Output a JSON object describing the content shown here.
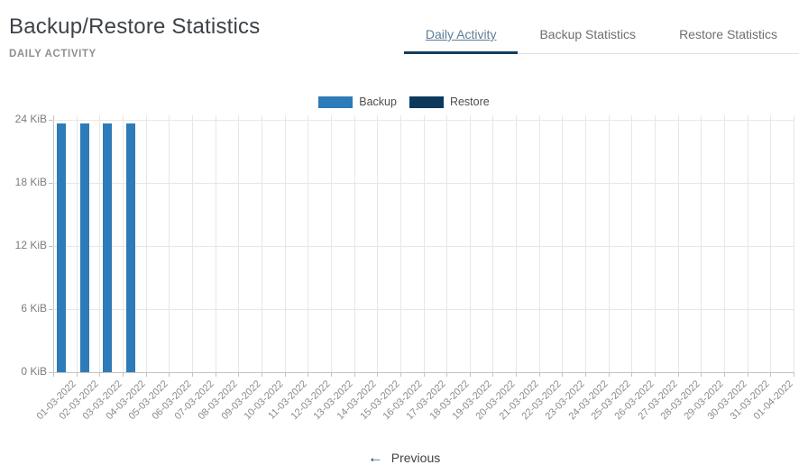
{
  "page": {
    "title": "Backup/Restore Statistics",
    "subtitle": "DAILY ACTIVITY"
  },
  "tabs": [
    {
      "label": "Daily Activity",
      "active": true
    },
    {
      "label": "Backup Statistics",
      "active": false
    },
    {
      "label": "Restore Statistics",
      "active": false
    }
  ],
  "pagination": {
    "previous_icon": "←",
    "previous_label": "Previous"
  },
  "colors": {
    "accent_navy": "#123d5f",
    "active_tab_text": "#5e7d96",
    "backup_blue": "#2d7bb8",
    "restore_navy": "#0d3a5c",
    "gridline": "#e7e7e7",
    "axis": "#c4c4c4"
  },
  "chart_data": {
    "type": "bar",
    "title": "Daily Activity",
    "categories": [
      "01-03-2022",
      "02-03-2022",
      "03-03-2022",
      "04-03-2022",
      "05-03-2022",
      "06-03-2022",
      "07-03-2022",
      "08-03-2022",
      "09-03-2022",
      "10-03-2022",
      "11-03-2022",
      "12-03-2022",
      "13-03-2022",
      "14-03-2022",
      "15-03-2022",
      "16-03-2022",
      "17-03-2022",
      "18-03-2022",
      "19-03-2022",
      "20-03-2022",
      "21-03-2022",
      "22-03-2022",
      "23-03-2022",
      "24-03-2022",
      "25-03-2022",
      "26-03-2022",
      "27-03-2022",
      "28-03-2022",
      "29-03-2022",
      "30-03-2022",
      "31-03-2022",
      "01-04-2022"
    ],
    "series": [
      {
        "name": "Backup",
        "color": "#2d7bb8",
        "values": [
          23.65,
          23.65,
          23.65,
          23.65,
          0,
          0,
          0,
          0,
          0,
          0,
          0,
          0,
          0,
          0,
          0,
          0,
          0,
          0,
          0,
          0,
          0,
          0,
          0,
          0,
          0,
          0,
          0,
          0,
          0,
          0,
          0,
          0
        ]
      },
      {
        "name": "Restore",
        "color": "#0d3a5c",
        "values": [
          0,
          0,
          0,
          0,
          0,
          0,
          0,
          0,
          0,
          0,
          0,
          0,
          0,
          0,
          0,
          0,
          0,
          0,
          0,
          0,
          0,
          0,
          0,
          0,
          0,
          0,
          0,
          0,
          0,
          0,
          0,
          0
        ]
      }
    ],
    "xlabel": "",
    "ylabel": "",
    "y_unit": "KiB",
    "yticks": [
      0,
      6,
      12,
      18,
      24
    ],
    "ylim": [
      0,
      24
    ],
    "grid": true,
    "legend_position": "top"
  }
}
